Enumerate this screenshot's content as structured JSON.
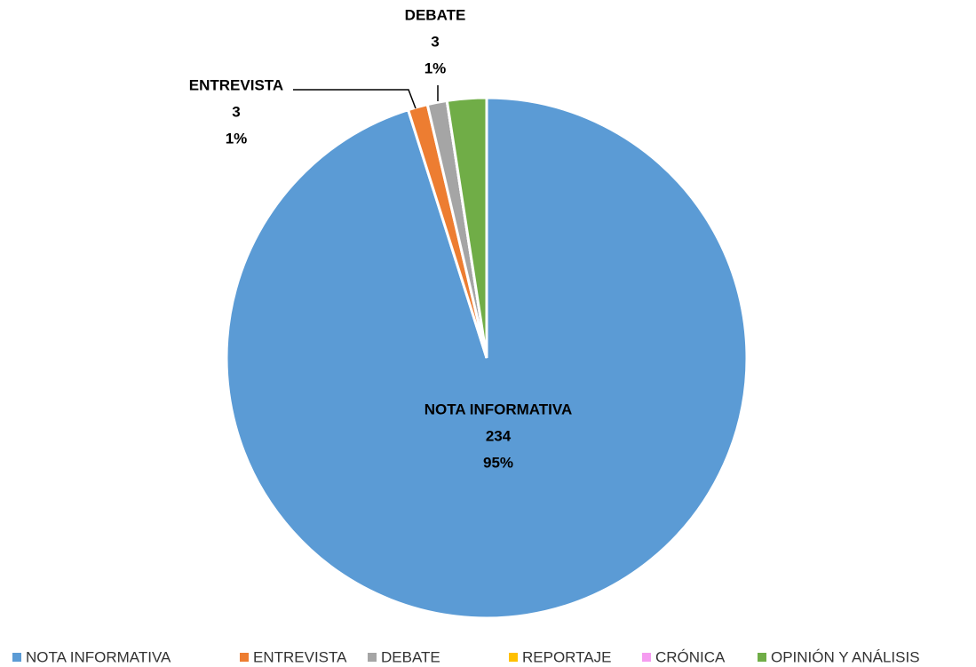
{
  "chart_data": {
    "type": "pie",
    "categories": [
      "NOTA INFORMATIVA",
      "ENTREVISTA",
      "DEBATE",
      "REPORTAJE",
      "CRÓNICA",
      "OPINIÓN Y ANÁLISIS"
    ],
    "values": [
      234,
      3,
      3,
      0,
      0,
      6
    ],
    "percent_labels": [
      "95%",
      "1%",
      "1%",
      null,
      null,
      "3%"
    ],
    "colors": [
      "#5b9bd5",
      "#ed7d31",
      "#a5a5a5",
      "#ffc000",
      "#f59cf0",
      "#70ad47"
    ],
    "legend": "bottom"
  }
}
